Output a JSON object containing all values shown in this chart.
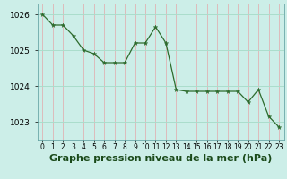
{
  "x": [
    0,
    1,
    2,
    3,
    4,
    5,
    6,
    7,
    8,
    9,
    10,
    11,
    12,
    13,
    14,
    15,
    16,
    17,
    18,
    19,
    20,
    21,
    22,
    23
  ],
  "y": [
    1026.0,
    1025.7,
    1025.7,
    1025.4,
    1025.0,
    1024.9,
    1024.65,
    1024.65,
    1024.65,
    1025.2,
    1025.2,
    1025.65,
    1025.2,
    1023.9,
    1023.85,
    1023.85,
    1023.85,
    1023.85,
    1023.85,
    1023.85,
    1023.55,
    1023.9,
    1023.15,
    1022.85
  ],
  "line_color": "#2d6b2d",
  "marker": "*",
  "marker_size": 3.5,
  "bg_color": "#cceee8",
  "hgrid_color": "#aaddcc",
  "vgrid_color": "#ddbbbb",
  "xlabel": "Graphe pression niveau de la mer (hPa)",
  "xlabel_fontsize": 8,
  "xlabel_bold": true,
  "ylim": [
    1022.5,
    1026.3
  ],
  "yticks": [
    1023,
    1024,
    1025,
    1026
  ],
  "xticks": [
    0,
    1,
    2,
    3,
    4,
    5,
    6,
    7,
    8,
    9,
    10,
    11,
    12,
    13,
    14,
    15,
    16,
    17,
    18,
    19,
    20,
    21,
    22,
    23
  ],
  "ytick_fontsize": 6.5,
  "xtick_fontsize": 5.5,
  "figsize": [
    3.2,
    2.0
  ],
  "dpi": 100
}
